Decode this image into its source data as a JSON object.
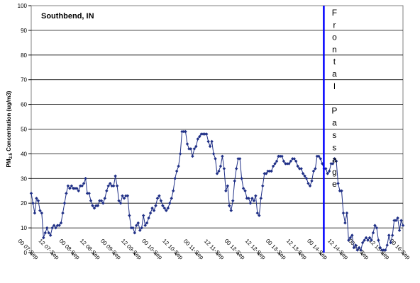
{
  "chart_data": {
    "type": "line",
    "title": "Southbend, IN",
    "ylabel_main": "PM",
    "ylabel_sub": "2.5",
    "ylabel_rest": " Concentration (ug/m3)",
    "xlabel": "",
    "ylim": [
      0,
      100
    ],
    "yticks": [
      0,
      10,
      20,
      30,
      40,
      50,
      60,
      70,
      80,
      90,
      100
    ],
    "grid": true,
    "series_color": "#1f2f86",
    "marker_line_color": "#0000ff",
    "x_range_hours": [
      0,
      216
    ],
    "xticks": [
      {
        "label": "00 07-Sep",
        "hour": 0
      },
      {
        "label": "12 07-Sep",
        "hour": 12
      },
      {
        "label": "00 08-Sep",
        "hour": 24
      },
      {
        "label": "12 08-Sep",
        "hour": 36
      },
      {
        "label": "00 09-Sep",
        "hour": 48
      },
      {
        "label": "12 09-Sep",
        "hour": 60
      },
      {
        "label": "00 10-Sep",
        "hour": 72
      },
      {
        "label": "12 10-Sep",
        "hour": 84
      },
      {
        "label": "00 11-Sep",
        "hour": 96
      },
      {
        "label": "12 11-Sep",
        "hour": 108
      },
      {
        "label": "00 12-Sep",
        "hour": 120
      },
      {
        "label": "12 12-Sep",
        "hour": 132
      },
      {
        "label": "00 13-Sep",
        "hour": 144
      },
      {
        "label": "12 13-Sep",
        "hour": 156
      },
      {
        "label": "00 14-Sep",
        "hour": 168
      },
      {
        "label": "12 14-Sep",
        "hour": 180
      },
      {
        "label": "00 15-Sep",
        "hour": 192
      },
      {
        "label": "12 15-Sep",
        "hour": 204
      },
      {
        "label": "00 16-Sep",
        "hour": 216
      }
    ],
    "vertical_marker_hour": 170,
    "annotation_letters": [
      "F",
      "r",
      "o",
      "n",
      "t",
      "a",
      "l",
      "",
      "P",
      "a",
      "s",
      "s",
      "a",
      "g",
      "e"
    ],
    "series": [
      {
        "values": [
          24,
          20,
          16,
          22,
          21,
          17,
          16,
          6,
          8,
          10,
          8,
          7,
          10,
          11,
          10,
          11,
          11,
          12,
          16,
          20,
          24,
          27,
          26,
          27,
          26,
          26,
          26,
          25,
          27,
          27,
          28,
          30,
          24,
          24,
          21,
          19,
          18,
          19,
          19,
          21,
          21,
          20,
          22,
          25,
          27,
          28,
          27,
          27,
          31,
          27,
          21,
          20,
          23,
          22,
          23,
          23,
          15,
          10,
          10,
          8,
          11,
          12,
          9,
          10,
          15,
          11,
          12,
          14,
          16,
          18,
          17,
          19,
          22,
          23,
          21,
          19,
          18,
          17,
          18,
          20,
          22,
          25,
          30,
          33,
          35,
          40,
          49,
          49,
          49,
          44,
          42,
          42,
          39,
          42,
          43,
          46,
          47,
          48,
          48,
          48,
          48,
          45,
          43,
          45,
          40,
          38,
          32,
          33,
          35,
          39,
          34,
          25,
          27,
          19,
          17,
          21,
          29,
          34,
          38,
          38,
          30,
          26,
          25,
          22,
          22,
          20,
          22,
          21,
          23,
          16,
          15,
          22,
          27,
          32,
          32,
          33,
          33,
          33,
          35,
          36,
          37,
          39,
          39,
          39,
          37,
          36,
          36,
          36,
          37,
          38,
          38,
          37,
          35,
          34,
          34,
          32,
          31,
          30,
          28,
          27,
          29,
          33,
          34,
          39,
          39,
          38,
          36,
          34,
          34,
          32,
          33,
          36,
          36,
          38,
          37,
          28,
          25,
          25,
          16,
          12,
          16,
          5,
          6,
          7,
          2,
          3,
          1,
          2,
          1,
          4,
          5,
          6,
          5,
          6,
          5,
          8,
          11,
          10,
          5,
          2,
          1,
          1,
          1,
          3,
          7,
          4,
          7,
          13,
          13,
          14,
          9,
          13,
          11
        ]
      }
    ]
  }
}
